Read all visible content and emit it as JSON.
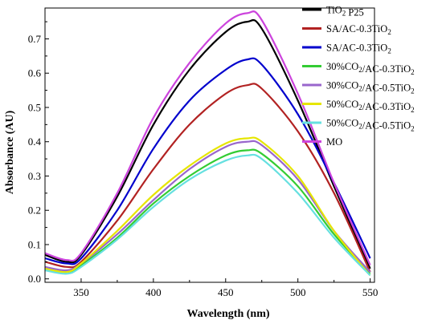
{
  "chart_data": {
    "type": "line",
    "xlabel": "Wavelength (nm)",
    "ylabel": "Absorbance (AU)",
    "xlim": [
      325,
      553
    ],
    "ylim": [
      -0.01,
      0.79
    ],
    "xticks": [
      350,
      400,
      450,
      500,
      550
    ],
    "yticks": [
      0.0,
      0.1,
      0.2,
      0.3,
      0.4,
      0.5,
      0.6,
      0.7
    ],
    "ytick_labels": [
      "0.0",
      "0.1",
      "0.2",
      "0.3",
      "0.4",
      "0.5",
      "0.6",
      "0.7"
    ],
    "grid": false,
    "legend_position": "top-right",
    "x": [
      325,
      340,
      350,
      375,
      400,
      425,
      450,
      465,
      475,
      500,
      525,
      550
    ],
    "series": [
      {
        "name": "TiO2 P25",
        "legend_main": "TiO",
        "legend_sub": "2",
        "legend_tail": " P25",
        "color": "#000000",
        "values": [
          0.07,
          0.05,
          0.07,
          0.24,
          0.45,
          0.61,
          0.72,
          0.75,
          0.73,
          0.52,
          0.27,
          0.03
        ]
      },
      {
        "name": "SA/AC-0.3TiO2",
        "legend_main": "SA/AC-0.3TiO",
        "legend_sub": "2",
        "legend_tail": "",
        "color": "#b22222",
        "values": [
          0.05,
          0.035,
          0.05,
          0.17,
          0.32,
          0.45,
          0.54,
          0.565,
          0.555,
          0.43,
          0.25,
          0.02
        ]
      },
      {
        "name": "SA/AC-0.3TiO2",
        "legend_main": "SA/AC-0.3TiO",
        "legend_sub": "2",
        "legend_tail": "",
        "color": "#0000cd",
        "values": [
          0.06,
          0.045,
          0.06,
          0.2,
          0.38,
          0.52,
          0.61,
          0.64,
          0.625,
          0.48,
          0.28,
          0.06
        ]
      },
      {
        "name": "30%CO2/AC-0.3TiO2",
        "legend_main": "30%CO",
        "legend_sub": "2",
        "legend_tail": "/AC-0.3TiO",
        "legend_sub2": "2",
        "color": "#33cc33",
        "values": [
          0.03,
          0.02,
          0.04,
          0.12,
          0.22,
          0.3,
          0.36,
          0.375,
          0.365,
          0.27,
          0.13,
          0.015
        ]
      },
      {
        "name": "30%CO2/AC-0.5TiO2",
        "legend_main": "30%CO",
        "legend_sub": "2",
        "legend_tail": "/AC-0.5TiO",
        "legend_sub2": "2",
        "color": "#9966cc",
        "values": [
          0.035,
          0.025,
          0.045,
          0.13,
          0.23,
          0.32,
          0.385,
          0.4,
          0.39,
          0.29,
          0.14,
          0.02
        ]
      },
      {
        "name": "50%CO2/AC-0.3TiO2",
        "legend_main": "50%CO",
        "legend_sub": "2",
        "legend_tail": "/AC-0.3TiO",
        "legend_sub2": "2",
        "color": "#e6e600",
        "values": [
          0.03,
          0.02,
          0.045,
          0.14,
          0.245,
          0.33,
          0.395,
          0.41,
          0.4,
          0.3,
          0.14,
          0.01
        ]
      },
      {
        "name": "50%CO2/AC-0.5TiO2",
        "legend_main": "50%CO",
        "legend_sub": "2",
        "legend_tail": "/AC-0.5TiO",
        "legend_sub2": "2",
        "color": "#66e0e0",
        "values": [
          0.025,
          0.015,
          0.035,
          0.115,
          0.21,
          0.29,
          0.345,
          0.36,
          0.35,
          0.25,
          0.12,
          0.01
        ]
      },
      {
        "name": "MO",
        "legend_main": "MO",
        "legend_sub": "",
        "legend_tail": "",
        "color": "#cc44dd",
        "values": [
          0.075,
          0.055,
          0.075,
          0.25,
          0.47,
          0.63,
          0.745,
          0.775,
          0.755,
          0.54,
          0.28,
          0.04
        ]
      }
    ]
  }
}
